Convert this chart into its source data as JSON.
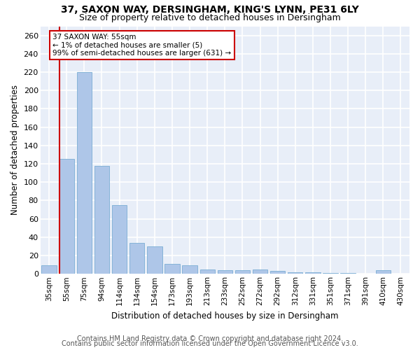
{
  "title1": "37, SAXON WAY, DERSINGHAM, KING'S LYNN, PE31 6LY",
  "title2": "Size of property relative to detached houses in Dersingham",
  "xlabel": "Distribution of detached houses by size in Dersingham",
  "ylabel": "Number of detached properties",
  "footnote1": "Contains HM Land Registry data © Crown copyright and database right 2024.",
  "footnote2": "Contains public sector information licensed under the Open Government Licence v3.0.",
  "categories": [
    "35sqm",
    "55sqm",
    "75sqm",
    "94sqm",
    "114sqm",
    "134sqm",
    "154sqm",
    "173sqm",
    "193sqm",
    "213sqm",
    "233sqm",
    "252sqm",
    "272sqm",
    "292sqm",
    "312sqm",
    "331sqm",
    "351sqm",
    "371sqm",
    "391sqm",
    "410sqm",
    "430sqm"
  ],
  "values": [
    9,
    125,
    220,
    118,
    75,
    34,
    30,
    11,
    9,
    5,
    4,
    4,
    5,
    3,
    2,
    2,
    1,
    1,
    0,
    4,
    0
  ],
  "bar_color": "#aec6e8",
  "bar_edge_color": "#7aadd4",
  "annotation_text": "37 SAXON WAY: 55sqm\n← 1% of detached houses are smaller (5)\n99% of semi-detached houses are larger (631) →",
  "annotation_box_color": "white",
  "annotation_box_edge_color": "#cc0000",
  "vline_x": 1,
  "vline_color": "#cc0000",
  "ylim": [
    0,
    270
  ],
  "yticks": [
    0,
    20,
    40,
    60,
    80,
    100,
    120,
    140,
    160,
    180,
    200,
    220,
    240,
    260
  ],
  "background_color": "#e8eef8",
  "grid_color": "#ffffff",
  "title1_fontsize": 10,
  "title2_fontsize": 9,
  "xlabel_fontsize": 8.5,
  "ylabel_fontsize": 8.5,
  "footnote_fontsize": 7
}
